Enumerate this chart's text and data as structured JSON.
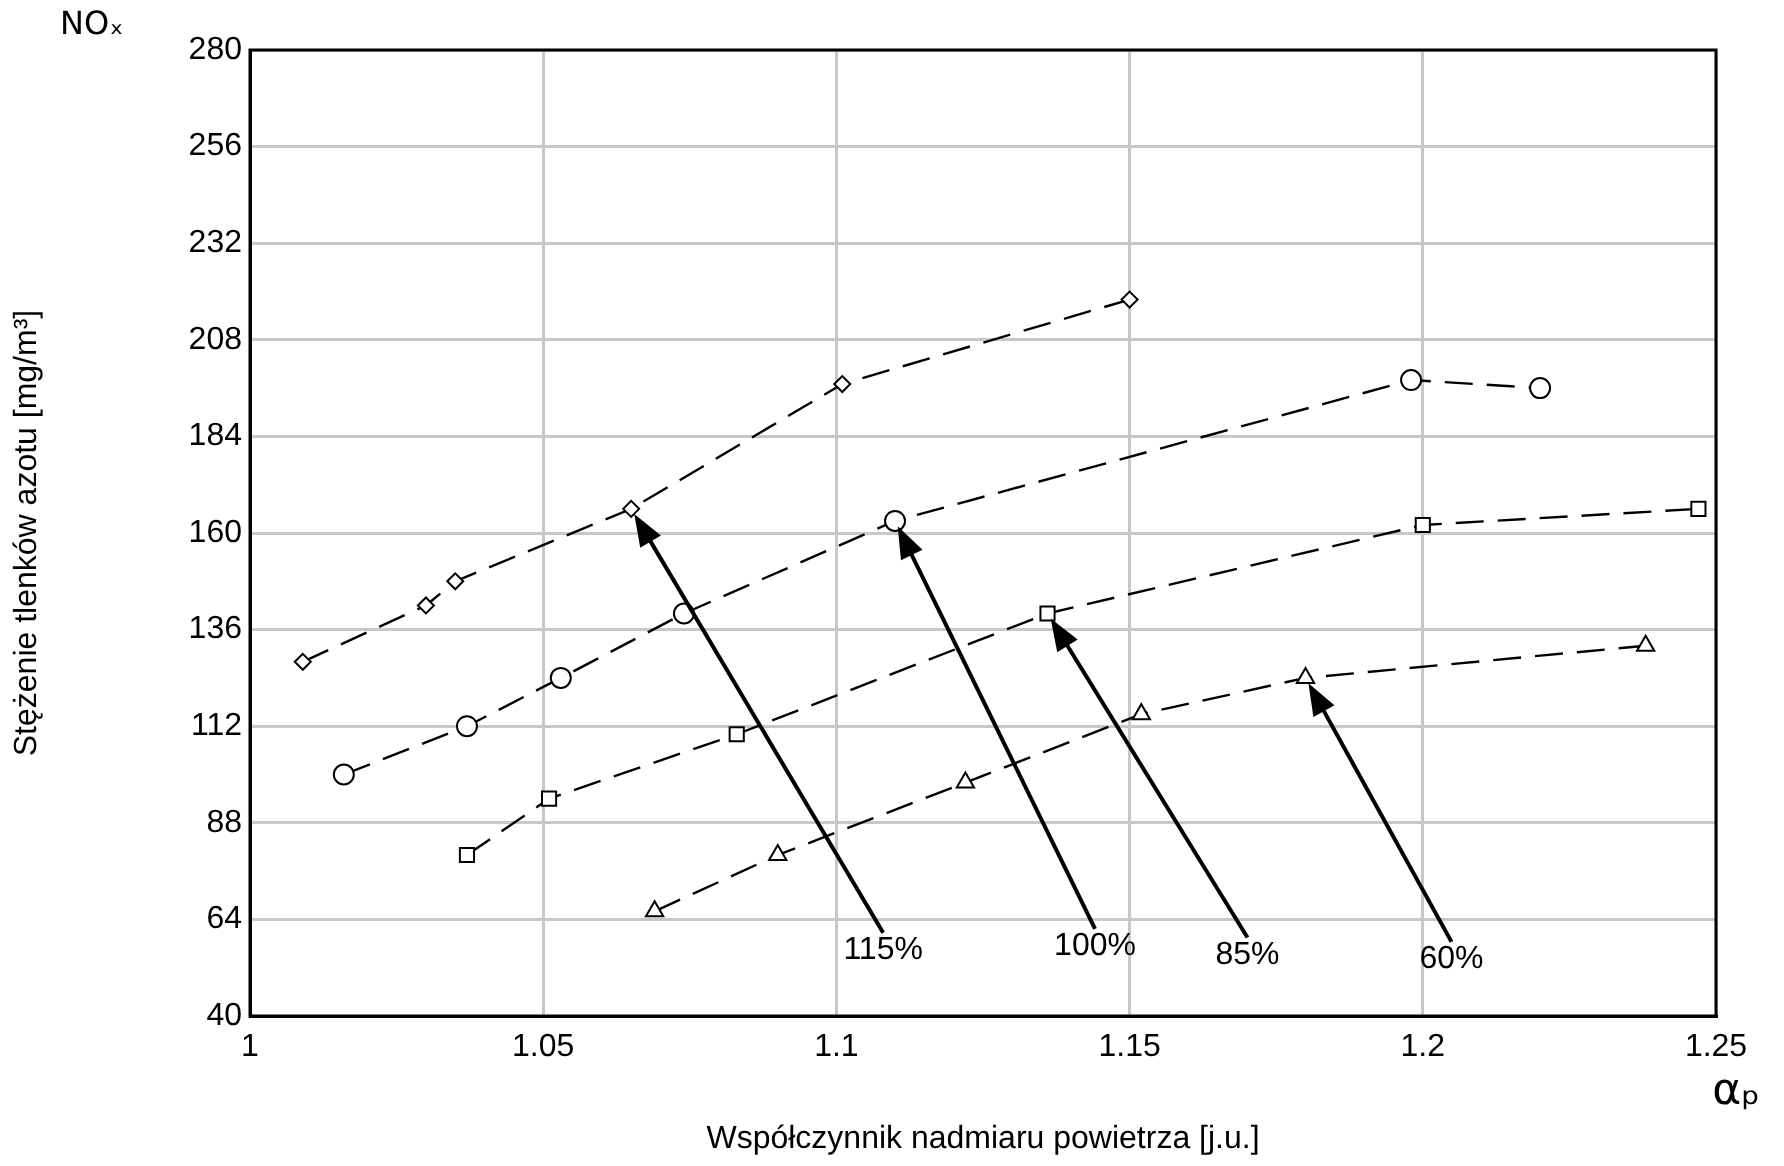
{
  "chart_data": {
    "type": "line",
    "xlabel": "Współczynnik nadmiaru powietrza [j.u.]",
    "ylabel": "Stężenie tlenków azotu [mg/m³]",
    "xlim": [
      1,
      1.25
    ],
    "xticks": [
      1,
      1.05,
      1.1,
      1.15,
      1.2,
      1.25
    ],
    "ylim": [
      40,
      280
    ],
    "yticks": [
      40,
      64,
      88,
      112,
      136,
      160,
      184,
      208,
      232,
      256,
      280
    ],
    "grid": true,
    "legend": false,
    "line_style": "dashed",
    "series": [
      {
        "color": "#000000",
        "marker": "diamond",
        "x": [
          1.009,
          1.03,
          1.035,
          1.065,
          1.101,
          1.15
        ],
        "values": [
          128,
          142,
          148,
          166,
          197,
          218
        ]
      },
      {
        "color": "#000000",
        "marker": "circle",
        "x": [
          1.016,
          1.037,
          1.053,
          1.074,
          1.11,
          1.198,
          1.22
        ],
        "values": [
          100,
          112,
          124,
          140,
          163,
          198,
          196
        ]
      },
      {
        "color": "#000000",
        "marker": "square",
        "x": [
          1.037,
          1.051,
          1.083,
          1.136,
          1.2,
          1.247
        ],
        "values": [
          80,
          94,
          110,
          140,
          162,
          166
        ]
      },
      {
        "color": "#000000",
        "marker": "triangle",
        "x": [
          1.069,
          1.09,
          1.122,
          1.152,
          1.18,
          1.238
        ],
        "values": [
          66,
          80,
          98,
          115,
          124,
          132
        ]
      }
    ],
    "annotations": [
      "NOₓ",
      "αₚ",
      "115%",
      "100%",
      "85%",
      "60%"
    ]
  }
}
